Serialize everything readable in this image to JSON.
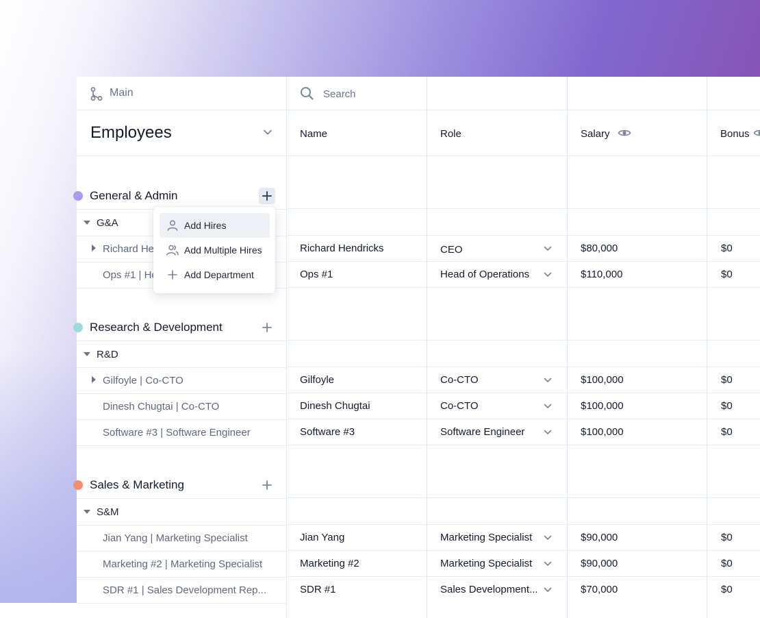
{
  "sidebar": {
    "main_label": "Main",
    "title": "Employees"
  },
  "search": {
    "placeholder": "Search"
  },
  "columns": {
    "name": "Name",
    "role": "Role",
    "salary": "Salary",
    "bonus": "Bonus"
  },
  "departments": [
    {
      "name": "General & Admin",
      "color": "#a99cf0",
      "sub": "G&A",
      "rows": [
        {
          "label": "Richard He",
          "name": "Richard Hendricks",
          "role": "CEO",
          "salary": "$80,000",
          "bonus": "$0"
        },
        {
          "label": "Ops #1 | He",
          "name": "Ops #1",
          "role": "Head of Operations",
          "salary": "$110,000",
          "bonus": "$0"
        }
      ]
    },
    {
      "name": "Research & Development",
      "color": "#9fdad6",
      "sub": "R&D",
      "rows": [
        {
          "label": "Gilfoyle | Co-CTO",
          "name": "Gilfoyle",
          "role": "Co-CTO",
          "salary": "$100,000",
          "bonus": "$0"
        },
        {
          "label": "Dinesh Chugtai | Co-CTO",
          "name": "Dinesh Chugtai",
          "role": "Co-CTO",
          "salary": "$100,000",
          "bonus": "$0"
        },
        {
          "label": "Software #3 | Software Engineer",
          "name": "Software #3",
          "role": "Software Engineer",
          "salary": "$100,000",
          "bonus": "$0"
        }
      ]
    },
    {
      "name": "Sales & Marketing",
      "color": "#f48f6f",
      "sub": "S&M",
      "rows": [
        {
          "label": "Jian Yang | Marketing Specialist",
          "name": "Jian Yang",
          "role": "Marketing Specialist",
          "salary": "$90,000",
          "bonus": "$0"
        },
        {
          "label": "Marketing #2 | Marketing Specialist",
          "name": "Marketing #2",
          "role": "Marketing Specialist",
          "salary": "$90,000",
          "bonus": "$0"
        },
        {
          "label": "SDR #1 | Sales Development Rep...",
          "name": "SDR #1",
          "role": "Sales Development...",
          "salary": "$70,000",
          "bonus": "$0"
        }
      ]
    }
  ],
  "menu": {
    "add_hires": "Add Hires",
    "add_multiple_hires": "Add Multiple Hires",
    "add_department": "Add Department"
  }
}
